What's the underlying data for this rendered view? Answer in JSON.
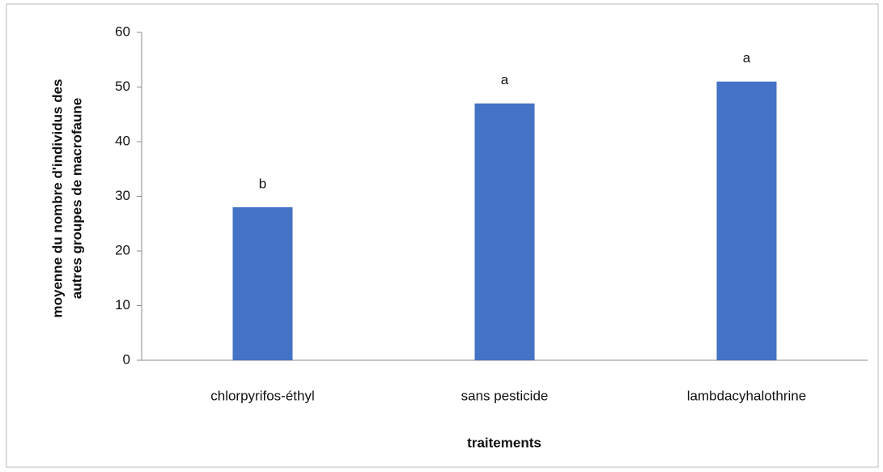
{
  "chart_data": {
    "type": "bar",
    "categories": [
      "chlorpyrifos-éthyl",
      "sans pesticide",
      "lambdacyhalothrine"
    ],
    "values": [
      28,
      47,
      51
    ],
    "annotations": [
      "b",
      "a",
      "a"
    ],
    "color": "#4472c4",
    "ylabel": [
      "moyenne du nombre d'individus des",
      "autres groupes de macrofaune"
    ],
    "xlabel": "traitements",
    "ylim": [
      0,
      60
    ],
    "yticks": [
      0,
      10,
      20,
      30,
      40,
      50,
      60
    ],
    "grid": false
  }
}
